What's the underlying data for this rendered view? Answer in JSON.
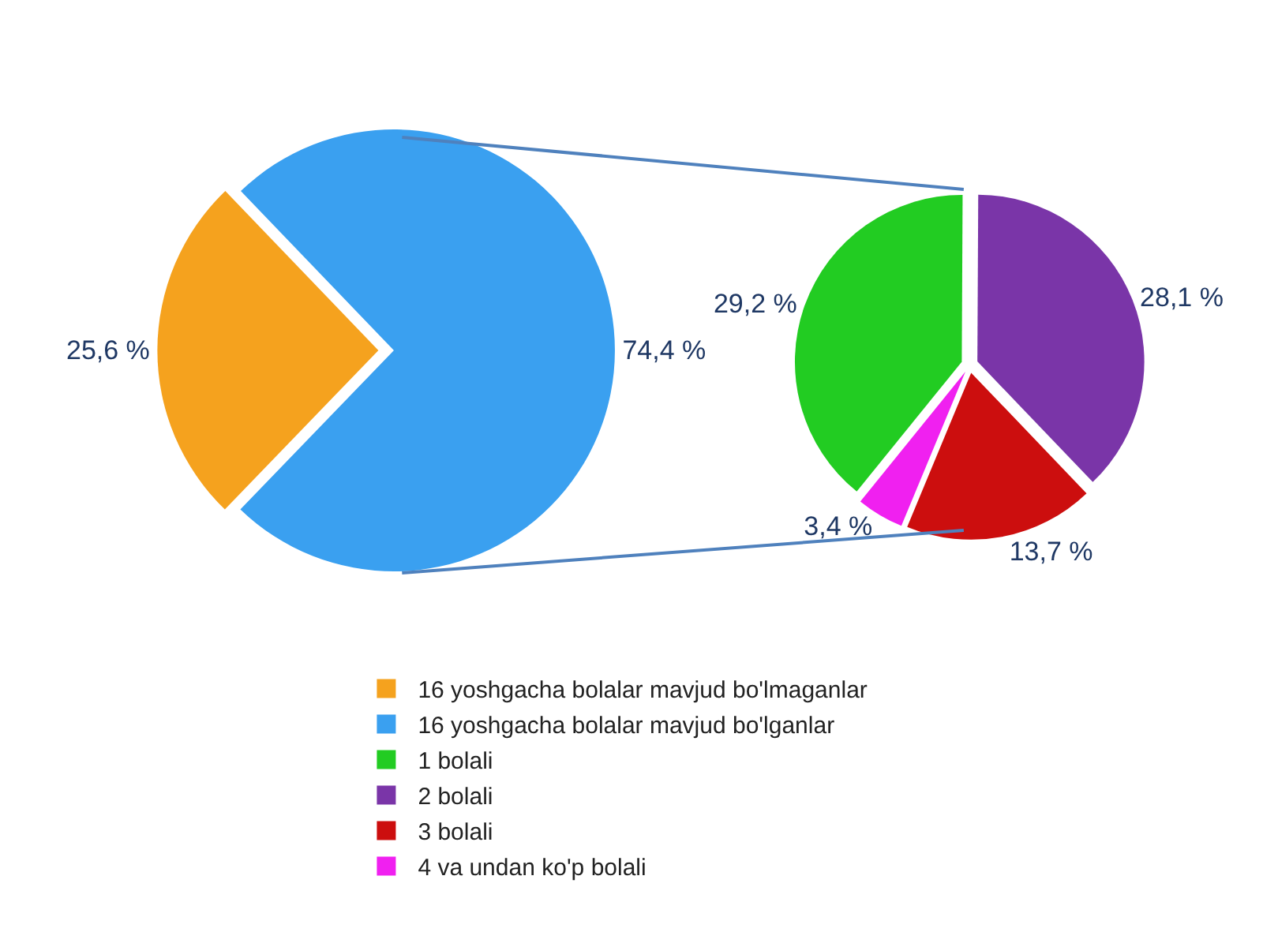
{
  "chart_data": [
    {
      "type": "pie",
      "categories": [
        "16 yoshgacha bolalar mavjud bo'lmaganlar",
        "16 yoshgacha bolalar mavjud bo'lganlar"
      ],
      "values": [
        25.6,
        74.4
      ],
      "colors": [
        "#f5a21e",
        "#3aa0f0"
      ],
      "value_labels": [
        "25,6 %",
        "74,4 %"
      ],
      "legend": "bottom"
    },
    {
      "type": "pie",
      "categories": [
        "1 bolali",
        "2 bolali",
        "3 bolali",
        "4 va undan ko'p bolali"
      ],
      "values": [
        29.2,
        28.1,
        13.7,
        3.4
      ],
      "colors": [
        "#22cc22",
        "#7a35a8",
        "#cc0e0e",
        "#f020f0"
      ],
      "value_labels": [
        "29,2 %",
        "28,1 %",
        "13,7 %",
        "3,4 %"
      ],
      "legend": "bottom"
    }
  ]
}
